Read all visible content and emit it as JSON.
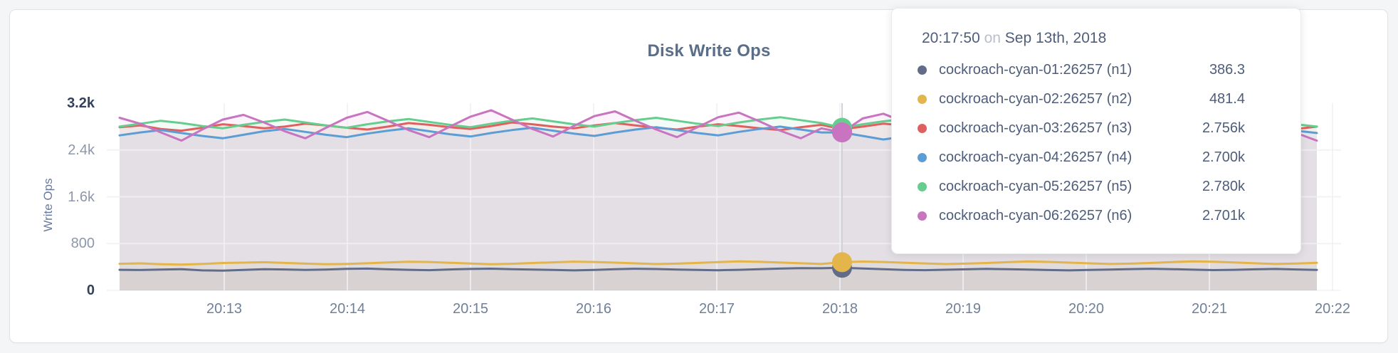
{
  "panel": {
    "title": "Disk Write Ops"
  },
  "tooltip": {
    "time": "20:17:50",
    "conjunction": "on",
    "date": "Sep 13th, 2018",
    "rows": [
      {
        "label": "cockroach-cyan-01:26257 (n1)",
        "value": "386.3",
        "color": "#606c88"
      },
      {
        "label": "cockroach-cyan-02:26257 (n2)",
        "value": "481.4",
        "color": "#e3b54a"
      },
      {
        "label": "cockroach-cyan-03:26257 (n3)",
        "value": "2.756k",
        "color": "#e06060"
      },
      {
        "label": "cockroach-cyan-04:26257 (n4)",
        "value": "2.700k",
        "color": "#5c9dd5"
      },
      {
        "label": "cockroach-cyan-05:26257 (n5)",
        "value": "2.780k",
        "color": "#65cd8d"
      },
      {
        "label": "cockroach-cyan-06:26257 (n6)",
        "value": "2.701k",
        "color": "#c974c1"
      }
    ]
  },
  "chart_data": {
    "type": "line",
    "title": "Disk Write Ops",
    "xlabel": "",
    "ylabel": "Write Ops",
    "ylim": [
      0,
      3200
    ],
    "grid": true,
    "legend_position": "tooltip",
    "x_step_seconds": 10,
    "x_tick_labels": [
      "20:13",
      "20:14",
      "20:15",
      "20:16",
      "20:17",
      "20:18",
      "20:19",
      "20:20",
      "20:21",
      "20:22"
    ],
    "y_ticks": [
      {
        "label": "3.2k",
        "value": 3200,
        "emphasis": true
      },
      {
        "label": "2.4k",
        "value": 2400,
        "emphasis": false
      },
      {
        "label": "1.6k",
        "value": 1600,
        "emphasis": false
      },
      {
        "label": "800",
        "value": 800,
        "emphasis": false
      },
      {
        "label": "0",
        "value": 0,
        "emphasis": true
      }
    ],
    "hover_index": 35,
    "hover_time": "20:17:50",
    "series": [
      {
        "name": "cockroach-cyan-01:26257 (n1)",
        "color": "#606c88",
        "hover_value": 386.3,
        "values": [
          352,
          348,
          355,
          361,
          342,
          338,
          350,
          362,
          358,
          349,
          355,
          368,
          372,
          360,
          352,
          346,
          358,
          366,
          371,
          363,
          355,
          349,
          342,
          351,
          362,
          370,
          365,
          357,
          350,
          344,
          352,
          361,
          372,
          381,
          379,
          386.3,
          375,
          362,
          350,
          345,
          353,
          360,
          368,
          362,
          355,
          348,
          342,
          350,
          357,
          364,
          370,
          362,
          354,
          347,
          352,
          360,
          366,
          358,
          351
        ]
      },
      {
        "name": "cockroach-cyan-02:26257 (n2)",
        "color": "#e3b54a",
        "hover_value": 481.4,
        "values": [
          455,
          462,
          448,
          440,
          452,
          468,
          475,
          482,
          470,
          458,
          446,
          452,
          464,
          478,
          490,
          485,
          472,
          460,
          448,
          455,
          468,
          480,
          492,
          486,
          474,
          462,
          450,
          458,
          470,
          483,
          495,
          488,
          476,
          463,
          452,
          481.4,
          493,
          486,
          473,
          461,
          450,
          457,
          469,
          482,
          494,
          487,
          475,
          462,
          451,
          458,
          470,
          484,
          496,
          489,
          477,
          464,
          452,
          460,
          472
        ]
      },
      {
        "name": "cockroach-cyan-03:26257 (n3)",
        "color": "#e06060",
        "hover_value": 2756,
        "values": [
          2790,
          2820,
          2760,
          2730,
          2780,
          2840,
          2810,
          2770,
          2800,
          2850,
          2820,
          2780,
          2750,
          2800,
          2860,
          2830,
          2790,
          2760,
          2810,
          2870,
          2840,
          2800,
          2770,
          2820,
          2860,
          2820,
          2780,
          2750,
          2800,
          2840,
          2810,
          2770,
          2740,
          2790,
          2830,
          2756,
          2800,
          2850,
          2820,
          2780,
          2750,
          2800,
          2840,
          2870,
          2830,
          2790,
          2760,
          2810,
          2850,
          2820,
          2780,
          2750,
          2790,
          2830,
          2860,
          2820,
          2790,
          2760,
          2800
        ]
      },
      {
        "name": "cockroach-cyan-04:26257 (n4)",
        "color": "#5c9dd5",
        "hover_value": 2700,
        "values": [
          2650,
          2700,
          2740,
          2690,
          2640,
          2600,
          2660,
          2720,
          2760,
          2710,
          2660,
          2620,
          2680,
          2730,
          2770,
          2720,
          2670,
          2630,
          2690,
          2740,
          2780,
          2730,
          2680,
          2640,
          2700,
          2750,
          2790,
          2740,
          2690,
          2650,
          2710,
          2760,
          2800,
          2750,
          2700,
          2700,
          2640,
          2580,
          2630,
          2690,
          2730,
          2680,
          2630,
          2590,
          2650,
          2700,
          2740,
          2690,
          2650,
          2610,
          2670,
          2720,
          2760,
          2710,
          2660,
          2620,
          2680,
          2730,
          2690
        ]
      },
      {
        "name": "cockroach-cyan-05:26257 (n5)",
        "color": "#65cd8d",
        "hover_value": 2780,
        "values": [
          2800,
          2850,
          2900,
          2860,
          2810,
          2770,
          2830,
          2880,
          2920,
          2870,
          2820,
          2780,
          2840,
          2890,
          2930,
          2880,
          2830,
          2790,
          2850,
          2900,
          2940,
          2890,
          2840,
          2800,
          2860,
          2910,
          2950,
          2900,
          2850,
          2810,
          2870,
          2920,
          2960,
          2910,
          2860,
          2780,
          2840,
          2890,
          2930,
          2880,
          2830,
          2790,
          2850,
          2900,
          2940,
          2890,
          2840,
          2800,
          2860,
          2910,
          2950,
          2900,
          2850,
          2810,
          2870,
          2920,
          2880,
          2840,
          2800
        ]
      },
      {
        "name": "cockroach-cyan-06:26257 (n6)",
        "color": "#c974c1",
        "hover_value": 2701,
        "values": [
          2950,
          2850,
          2700,
          2560,
          2750,
          2920,
          3000,
          2870,
          2720,
          2600,
          2780,
          2950,
          3050,
          2900,
          2740,
          2620,
          2800,
          2970,
          3080,
          2920,
          2760,
          2630,
          2810,
          2980,
          3060,
          2900,
          2750,
          2620,
          2790,
          2960,
          3040,
          2890,
          2730,
          2600,
          2770,
          2701,
          2940,
          3020,
          2880,
          2720,
          2590,
          2760,
          2930,
          3010,
          2870,
          2710,
          2580,
          2750,
          2920,
          3000,
          2860,
          2700,
          2570,
          2740,
          2910,
          2990,
          2850,
          2690,
          2560
        ]
      }
    ]
  }
}
